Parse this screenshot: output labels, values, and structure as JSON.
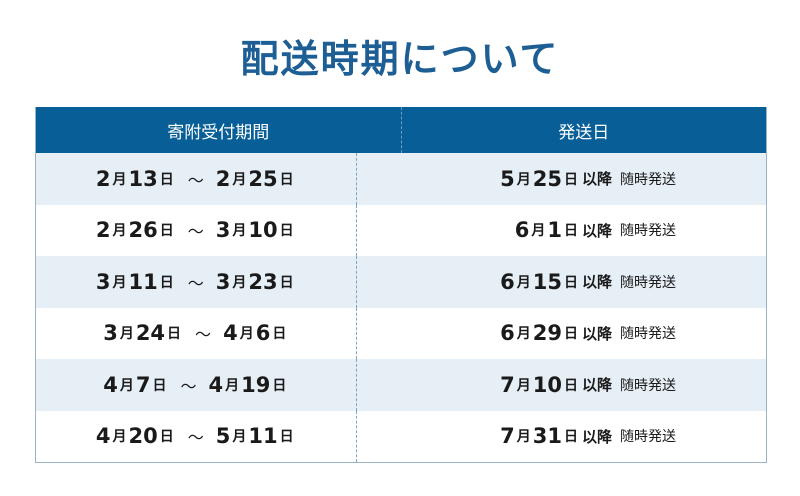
{
  "title": "配送時期について",
  "headers": [
    "寄附受付期間",
    "発送日"
  ],
  "labels": {
    "month": "月",
    "day": "日",
    "tilde": "〜",
    "after": "以降",
    "note": "随時発送"
  },
  "colors": {
    "header": "#085f97",
    "title": "#1d5f95",
    "stripe": "#e6eef6"
  },
  "rows": [
    {
      "fm": "2",
      "fd": "13",
      "tm": "2",
      "td": "25",
      "sm": "5",
      "sd": "25"
    },
    {
      "fm": "2",
      "fd": "26",
      "tm": "3",
      "td": "10",
      "sm": "6",
      "sd": "1"
    },
    {
      "fm": "3",
      "fd": "11",
      "tm": "3",
      "td": "23",
      "sm": "6",
      "sd": "15"
    },
    {
      "fm": "3",
      "fd": "24",
      "tm": "4",
      "td": "6",
      "sm": "6",
      "sd": "29"
    },
    {
      "fm": "4",
      "fd": "7",
      "tm": "4",
      "td": "19",
      "sm": "7",
      "sd": "10"
    },
    {
      "fm": "4",
      "fd": "20",
      "tm": "5",
      "td": "11",
      "sm": "7",
      "sd": "31"
    }
  ]
}
